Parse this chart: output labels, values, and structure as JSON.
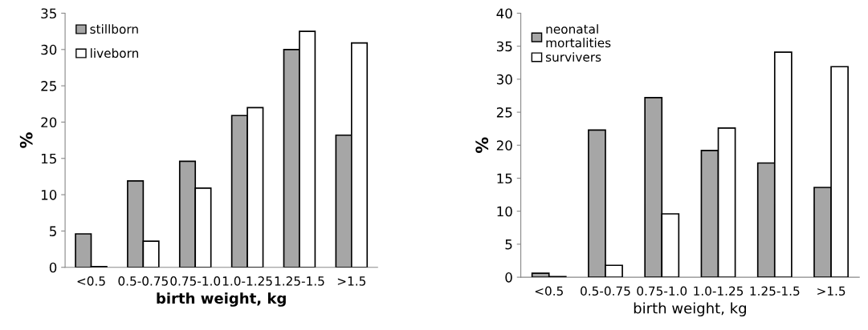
{
  "chart_data": [
    {
      "type": "bar",
      "categories": [
        "<0.5",
        "0.5-0.75",
        "0.75-1.0",
        "1.0-1.25",
        "1.25-1.5",
        ">1.5"
      ],
      "xlabel": "birth weight, kg",
      "ylabel": "%",
      "ylim": [
        0,
        35
      ],
      "yticks": [
        0,
        5,
        10,
        15,
        20,
        25,
        30,
        35
      ],
      "grid": false,
      "legend": "top left",
      "series": [
        {
          "name": "stillborn",
          "color": "#a6a6a6",
          "values": [
            4.6,
            11.9,
            14.6,
            20.9,
            30.0,
            18.2
          ]
        },
        {
          "name": "liveborn",
          "color": "#ffffff",
          "values": [
            0.1,
            3.6,
            10.9,
            22.0,
            32.5,
            30.9
          ]
        }
      ]
    },
    {
      "type": "bar",
      "categories": [
        "<0.5",
        "0.5-0.75",
        "0.75-1.0",
        "1.0-1.25",
        "1.25-1.5",
        ">1.5"
      ],
      "xlabel": "birth weight, kg",
      "ylabel": "%",
      "ylim": [
        0,
        40
      ],
      "yticks": [
        0,
        5,
        10,
        15,
        20,
        25,
        30,
        35,
        40
      ],
      "grid": false,
      "legend": "top left",
      "series": [
        {
          "name": "neonatal\nmortalities",
          "color": "#a6a6a6",
          "values": [
            0.6,
            22.3,
            27.2,
            19.2,
            17.3,
            13.6
          ]
        },
        {
          "name": "survivers",
          "color": "#ffffff",
          "values": [
            0.1,
            1.8,
            9.6,
            22.6,
            34.1,
            31.9
          ]
        }
      ]
    }
  ]
}
